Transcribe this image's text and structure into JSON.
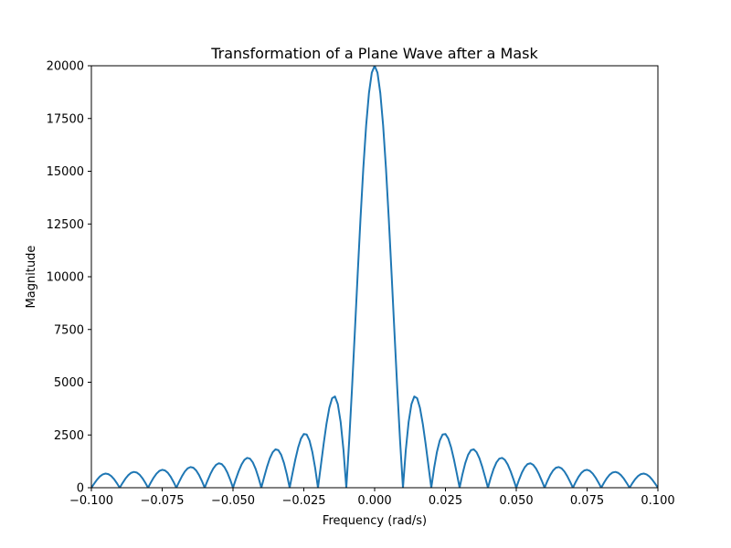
{
  "chart_data": {
    "type": "line",
    "title": "Transformation of a Plane Wave after a Mask",
    "xlabel": "Frequency (rad/s)",
    "ylabel": "Magnitude",
    "xlim": [
      -0.1,
      0.1
    ],
    "ylim": [
      0,
      20000
    ],
    "xticks": [
      -0.1,
      -0.075,
      -0.05,
      -0.025,
      0.0,
      0.025,
      0.05,
      0.075,
      0.1
    ],
    "xtick_labels": [
      "−0.100",
      "−0.075",
      "−0.050",
      "−0.025",
      "0.000",
      "0.025",
      "0.050",
      "0.075",
      "0.100"
    ],
    "yticks": [
      0,
      2500,
      5000,
      7500,
      10000,
      12500,
      15000,
      17500,
      20000
    ],
    "ytick_labels": [
      "0",
      "2500",
      "5000",
      "7500",
      "10000",
      "12500",
      "15000",
      "17500",
      "20000"
    ],
    "grid": false,
    "series": [
      {
        "name": "magnitude",
        "color": "#1f77b4",
        "function": "abs_sinc",
        "peak": 20000,
        "first_zero": 0.01,
        "x_start": -0.1,
        "x_end": 0.1,
        "num_points": 201
      }
    ]
  }
}
